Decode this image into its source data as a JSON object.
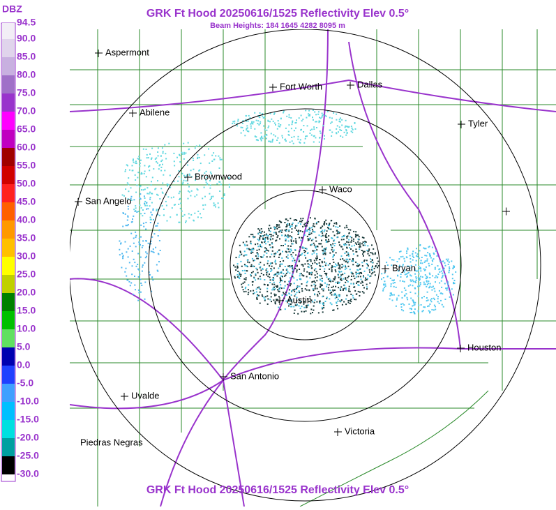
{
  "header": {
    "title": "GRK Ft Hood 20250616/1525 Reflectivity Elev 0.5°",
    "subtitle": "Beam Heights: 184 1645 4282 8095 m"
  },
  "footer": {
    "title": "GRK Ft Hood 20250616/1525 Reflectivity Elev 0.5°"
  },
  "legend": {
    "unit": "DBZ",
    "labels": [
      "94.5",
      "90.0",
      "85.0",
      "80.0",
      "75.0",
      "70.0",
      "65.0",
      "60.0",
      "55.0",
      "50.0",
      "45.0",
      "40.0",
      "35.0",
      "30.0",
      "25.0",
      "20.0",
      "15.0",
      "10.0",
      "5.0",
      "0.0",
      "-5.0",
      "-10.0",
      "-15.0",
      "-20.0",
      "-25.0",
      "-30.0"
    ],
    "colors": [
      "#f2eef6",
      "#e0d4ec",
      "#c8b0e0",
      "#a070c8",
      "#9933cc",
      "#ff00ff",
      "#c000c0",
      "#a00000",
      "#d00000",
      "#ff2020",
      "#ff6000",
      "#ff9900",
      "#ffc000",
      "#ffff00",
      "#c0d000",
      "#008000",
      "#00c000",
      "#60e060",
      "#0000b0",
      "#2040ff",
      "#40a0ff",
      "#00c0ff",
      "#00e0e0",
      "#00a0a0",
      "#000000"
    ]
  },
  "cities": [
    "Aspermont",
    "Fort Worth",
    "Dallas",
    "Abilene",
    "Tyler",
    "Brownwood",
    "Waco",
    "San Angelo",
    "Bryan",
    "Austin",
    "Houston",
    "San Antonio",
    "Uvalde",
    "Victoria",
    "Piedras Negras"
  ]
}
